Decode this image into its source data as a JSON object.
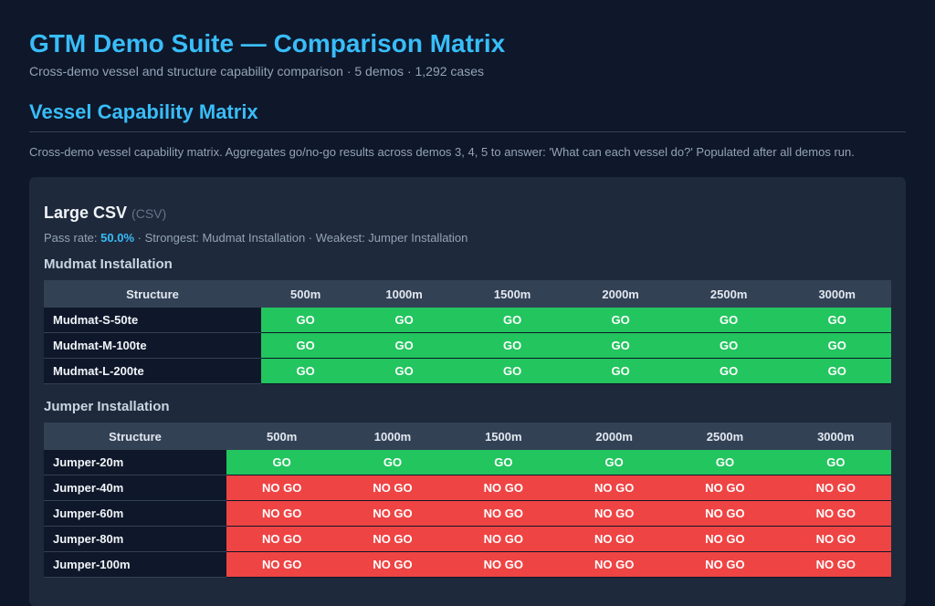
{
  "header": {
    "title": "GTM Demo Suite — Comparison Matrix",
    "subtitle": "Cross-demo vessel and structure capability comparison · 5 demos · 1,292 cases"
  },
  "section": {
    "title": "Vessel Capability Matrix",
    "description": "Cross-demo vessel capability matrix. Aggregates go/no-go results across demos 3, 4, 5 to answer: 'What can each vessel do?' Populated after all demos run."
  },
  "vessel": {
    "name": "Large CSV",
    "type": "(CSV)",
    "pass_label": "Pass rate:",
    "pass_rate": "50.0%",
    "summary": " · Strongest: Mudmat Installation · Weakest: Jumper Installation"
  },
  "colors": {
    "go": "#22c55e",
    "nogo": "#ef4444",
    "accent": "#38bdf8"
  },
  "matrices": [
    {
      "title": "Mudmat Installation",
      "struct_header": "Structure",
      "depths": [
        "500m",
        "1000m",
        "1500m",
        "2000m",
        "2500m",
        "3000m"
      ],
      "rows": [
        {
          "name": "Mudmat-S-50te",
          "cells": [
            "GO",
            "GO",
            "GO",
            "GO",
            "GO",
            "GO"
          ]
        },
        {
          "name": "Mudmat-M-100te",
          "cells": [
            "GO",
            "GO",
            "GO",
            "GO",
            "GO",
            "GO"
          ]
        },
        {
          "name": "Mudmat-L-200te",
          "cells": [
            "GO",
            "GO",
            "GO",
            "GO",
            "GO",
            "GO"
          ]
        }
      ]
    },
    {
      "title": "Jumper Installation",
      "struct_header": "Structure",
      "depths": [
        "500m",
        "1000m",
        "1500m",
        "2000m",
        "2500m",
        "3000m"
      ],
      "rows": [
        {
          "name": "Jumper-20m",
          "cells": [
            "GO",
            "GO",
            "GO",
            "GO",
            "GO",
            "GO"
          ]
        },
        {
          "name": "Jumper-40m",
          "cells": [
            "NO GO",
            "NO GO",
            "NO GO",
            "NO GO",
            "NO GO",
            "NO GO"
          ]
        },
        {
          "name": "Jumper-60m",
          "cells": [
            "NO GO",
            "NO GO",
            "NO GO",
            "NO GO",
            "NO GO",
            "NO GO"
          ]
        },
        {
          "name": "Jumper-80m",
          "cells": [
            "NO GO",
            "NO GO",
            "NO GO",
            "NO GO",
            "NO GO",
            "NO GO"
          ]
        },
        {
          "name": "Jumper-100m",
          "cells": [
            "NO GO",
            "NO GO",
            "NO GO",
            "NO GO",
            "NO GO",
            "NO GO"
          ]
        }
      ]
    }
  ]
}
